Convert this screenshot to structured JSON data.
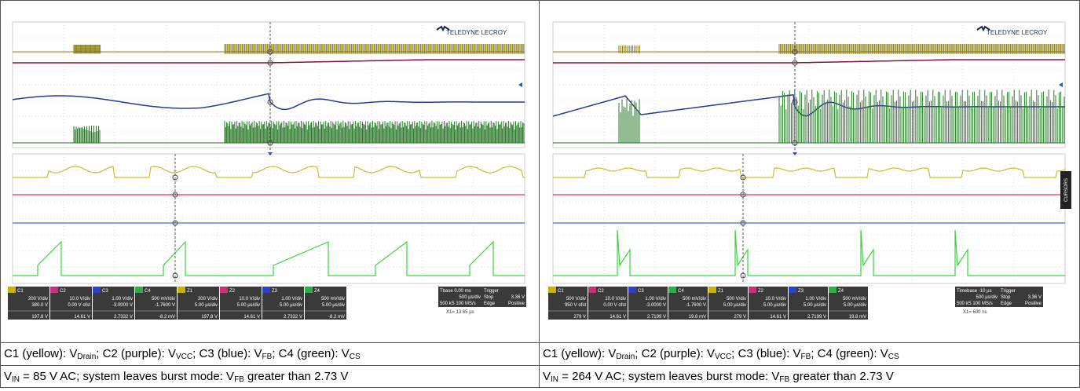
{
  "panels": [
    {
      "id": "left",
      "vendor_logo": "TELEDYNE LECROY",
      "captions": {
        "channels": [
          {
            "label": "C1 (yellow): ",
            "signal": "V",
            "sub": "Drain",
            "sep": "; "
          },
          {
            "label": "C2 (purple): ",
            "signal": "V",
            "sub": "VCC",
            "sep": "; "
          },
          {
            "label": "C3 (blue): ",
            "signal": "V",
            "sub": "FB",
            "sep": "; "
          },
          {
            "label": "C4 (green): ",
            "signal": "V",
            "sub": "CS",
            "sep": ""
          }
        ],
        "condition": {
          "v": "V",
          "sub": "IN",
          "text1": " = 85 V AC; system leaves burst mode: V",
          "sub2": "FB",
          "text2": " greater than 2.73 V"
        }
      },
      "readouts": [
        {
          "ch": "C1",
          "vdiv": "200 V/div",
          "offset": "380.0 V",
          "value": "197.8 V",
          "color": "#c8b400"
        },
        {
          "ch": "C2",
          "vdiv": "10.0 V/div",
          "offset": "0.00 V ofst",
          "value": "14.61 V",
          "color": "#c8307a"
        },
        {
          "ch": "C3",
          "vdiv": "1.00 V/div",
          "offset": "-3.0000 V",
          "value": "2.7332 V",
          "color": "#3040c8"
        },
        {
          "ch": "C4",
          "vdiv": "500 mV/div",
          "offset": "-1.7600 V",
          "value": "-8.2 mV",
          "color": "#30b040"
        },
        {
          "ch": "Z1",
          "vdiv": "200 V/div",
          "offset": "5.00 µs/div",
          "value": "197.8 V",
          "color": "#c8b400"
        },
        {
          "ch": "Z2",
          "vdiv": "10.0 V/div",
          "offset": "5.00 µs/div",
          "value": "14.61 V",
          "color": "#c8307a"
        },
        {
          "ch": "Z3",
          "vdiv": "1.00 V/div",
          "offset": "5.00 µs/div",
          "value": "2.7332 V",
          "color": "#3040c8"
        },
        {
          "ch": "Z4",
          "vdiv": "500 mV/div",
          "offset": "5.00 µs/div",
          "value": "-8.2 mV",
          "color": "#30b040"
        }
      ],
      "timebase": {
        "label": "Tbase",
        "value": "0.00 ms",
        "div": "500 µs/div",
        "rate": "500 kS  100 MS/s",
        "trigger": "Trigger",
        "mode": "Stop",
        "level": "3.36 V",
        "edge": "Edge",
        "slope": "Positive",
        "cursor": "X1= 13.65 µs"
      }
    },
    {
      "id": "right",
      "vendor_logo": "TELEDYNE LECROY",
      "captions": {
        "channels": [
          {
            "label": "C1 (yellow): ",
            "signal": "V",
            "sub": "Drain",
            "sep": "; "
          },
          {
            "label": "C2 (purple): ",
            "signal": "V",
            "sub": "VCC",
            "sep": "; "
          },
          {
            "label": "C3 (blue): ",
            "signal": "V",
            "sub": "FB",
            "sep": "; "
          },
          {
            "label": "C4 (green): ",
            "signal": "V",
            "sub": "CS",
            "sep": ""
          }
        ],
        "condition": {
          "v": "V",
          "sub": "IN",
          "text1": " = 264 V AC; system leaves burst mode: V",
          "sub2": "FB",
          "text2": " greater than 2.73 V"
        }
      },
      "readouts": [
        {
          "ch": "C1",
          "vdiv": "500 V/div",
          "offset": "950 V ofst",
          "value": "279 V",
          "color": "#c8b400"
        },
        {
          "ch": "C2",
          "vdiv": "10.0 V/div",
          "offset": "0.00 V ofst",
          "value": "14.61 V",
          "color": "#c8307a"
        },
        {
          "ch": "C3",
          "vdiv": "1.00 V/div",
          "offset": "-3.0000 V",
          "value": "2.7199 V",
          "color": "#3040c8"
        },
        {
          "ch": "C4",
          "vdiv": "500 mV/div",
          "offset": "-1.7600 V",
          "value": "19.8 mV",
          "color": "#30b040"
        },
        {
          "ch": "Z1",
          "vdiv": "500 V/div",
          "offset": "5.00 µs/div",
          "value": "279 V",
          "color": "#c8b400"
        },
        {
          "ch": "Z2",
          "vdiv": "10.0 V/div",
          "offset": "5.00 µs/div",
          "value": "14.61 V",
          "color": "#c8307a"
        },
        {
          "ch": "Z3",
          "vdiv": "1.00 V/div",
          "offset": "5.00 µs/div",
          "value": "2.7199 V",
          "color": "#3040c8"
        },
        {
          "ch": "Z4",
          "vdiv": "500 mV/div",
          "offset": "5.00 µs/div",
          "value": "19.8 mV",
          "color": "#30b040"
        }
      ],
      "timebase": {
        "label": "Timebase",
        "value": "-10 µs",
        "div": "500 µs/div",
        "rate": "500 kS  100 MS/s",
        "trigger": "Trigger",
        "mode": "Stop",
        "level": "3.36 V",
        "edge": "Edge",
        "slope": "Positive",
        "cursor": "X1= 600 ns"
      },
      "side_tab": "CURSORS"
    }
  ],
  "colors": {
    "yellow_trace": "#8a7d10",
    "purple_trace": "#8a1040",
    "blue_trace": "#2a3a90",
    "green_trace": "#2a7a2a",
    "zoom_yellow": "#c8c030",
    "zoom_pink": "#e03070",
    "zoom_blue": "#5060d0",
    "zoom_green": "#40d040",
    "readout_bg": "#3a3a3a"
  }
}
